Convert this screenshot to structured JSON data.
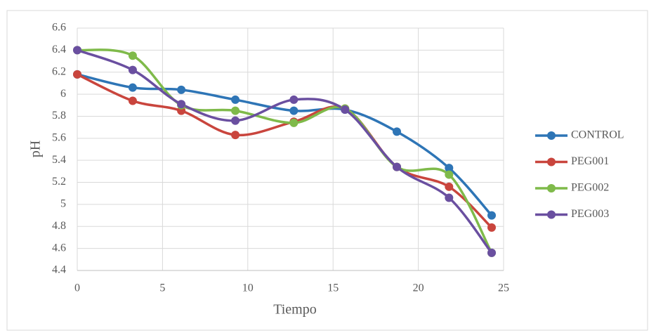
{
  "chart_data": {
    "type": "line",
    "x_label": "Tiempo",
    "y_label": "pH",
    "x": [
      0,
      3.25,
      6.1,
      9.27,
      12.7,
      15.7,
      18.74,
      21.8,
      24.3
    ],
    "series": [
      {
        "name": "CONTROL",
        "color": "#2e75b6",
        "values": [
          6.18,
          6.06,
          6.04,
          5.95,
          5.85,
          5.86,
          5.66,
          5.33,
          4.9
        ]
      },
      {
        "name": "PEG001",
        "color": "#c9453d",
        "values": [
          6.18,
          5.94,
          5.85,
          5.63,
          5.75,
          5.87,
          5.34,
          5.16,
          4.79
        ]
      },
      {
        "name": "PEG002",
        "color": "#7fba4a",
        "values": [
          6.4,
          6.35,
          5.9,
          5.85,
          5.74,
          5.87,
          5.34,
          5.27,
          4.56
        ]
      },
      {
        "name": "PEG003",
        "color": "#6a4fa0",
        "values": [
          6.4,
          6.22,
          5.91,
          5.76,
          5.95,
          5.86,
          5.34,
          5.06,
          4.56
        ]
      }
    ],
    "xlim": [
      0,
      25
    ],
    "xticks": [
      0,
      5,
      10,
      15,
      20,
      25
    ],
    "ylim": [
      4.4,
      6.6
    ],
    "yticks": [
      4.4,
      4.6,
      4.8,
      5,
      5.2,
      5.4,
      5.6,
      5.8,
      6,
      6.2,
      6.4,
      6.6
    ],
    "grid": true,
    "smooth": true,
    "legend": "right"
  }
}
